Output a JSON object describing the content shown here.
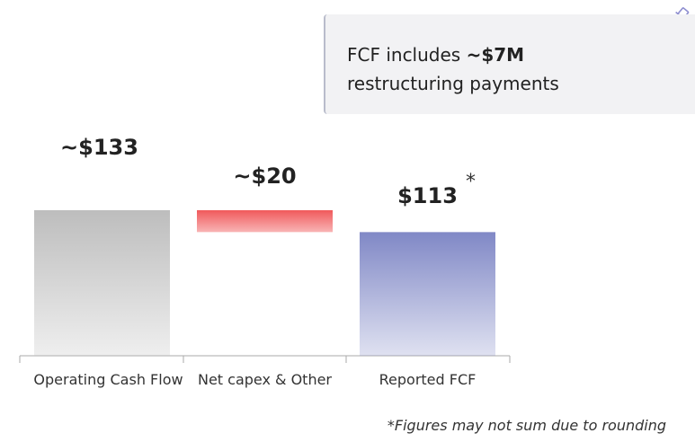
{
  "chart_data": {
    "type": "waterfall",
    "categories": [
      "Operating Cash Flow",
      "Net capex & Other",
      "Reported FCF"
    ],
    "values": [
      133,
      20,
      113
    ],
    "value_labels": [
      "~$133",
      "~$20",
      "$113"
    ],
    "colors": [
      "#bdbdbd",
      "#f0595b",
      "#8088c6"
    ],
    "marker": "*",
    "footnote": "*Figures may not sum due to rounding"
  },
  "callout": {
    "text": "FCF includes ",
    "bold": "~$7M",
    "text_after": "restructuring payments"
  }
}
